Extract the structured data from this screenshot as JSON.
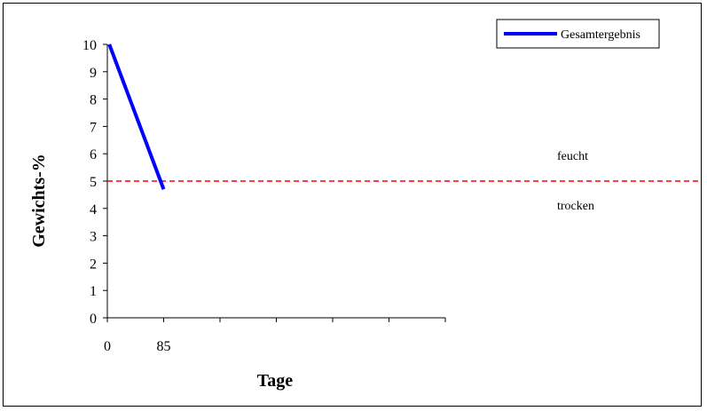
{
  "chart_data": {
    "type": "line",
    "xlabel": "Tage",
    "ylabel": "Gewichts-%",
    "xlim": [
      0,
      510
    ],
    "ylim": [
      0,
      10
    ],
    "x_tick_labels": [
      {
        "value": 0,
        "label": "0"
      },
      {
        "value": 85,
        "label": "85"
      }
    ],
    "x_tick_marks": [
      0,
      85,
      170,
      255,
      340,
      425,
      510
    ],
    "y_ticks": [
      0,
      1,
      2,
      3,
      4,
      5,
      6,
      7,
      8,
      9,
      10
    ],
    "series": [
      {
        "name": "Gesamtergebnis",
        "color": "#0000ff",
        "x": [
          3,
          85
        ],
        "y": [
          10,
          4.7
        ]
      }
    ],
    "reference_line": {
      "y": 5,
      "color": "#ff0000",
      "style": "dashed",
      "x_end": 790
    },
    "annotations": [
      {
        "text": "feucht"
      },
      {
        "text": "trocken"
      }
    ],
    "legend": {
      "position": "top-right"
    },
    "grid": false
  }
}
